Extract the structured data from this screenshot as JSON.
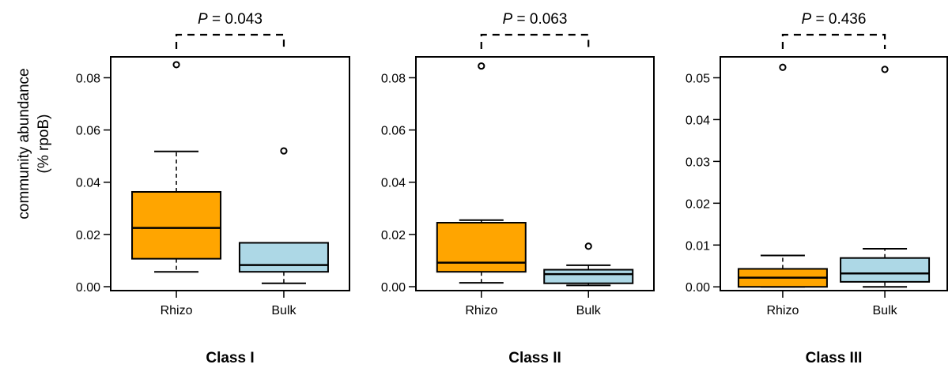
{
  "y_axis_label_lines": [
    "community abundance",
    "(% rpoB)"
  ],
  "colors": {
    "Rhizo": "#ffa500",
    "Bulk": "#add8e6"
  },
  "chart_data": [
    {
      "type": "box",
      "title": "Class I",
      "categories": [
        "Rhizo",
        "Bulk"
      ],
      "ylim": [
        -0.0015,
        0.088
      ],
      "yticks": [
        0,
        0.02,
        0.04,
        0.06,
        0.08
      ],
      "ytick_labels": [
        "0.00",
        "0.02",
        "0.04",
        "0.06",
        "0.08"
      ],
      "p_label": "P",
      "p_value": "= 0.043",
      "boxes": [
        {
          "group": "Rhizo",
          "min": 0.0057,
          "q1": 0.0107,
          "median": 0.0225,
          "q3": 0.0363,
          "max": 0.0518,
          "outliers": [
            0.085
          ]
        },
        {
          "group": "Bulk",
          "min": 0.0013,
          "q1": 0.0057,
          "median": 0.0083,
          "q3": 0.0168,
          "max": 0.0168,
          "outliers": [
            0.052
          ]
        }
      ]
    },
    {
      "type": "box",
      "title": "Class II",
      "categories": [
        "Rhizo",
        "Bulk"
      ],
      "ylim": [
        -0.0015,
        0.088
      ],
      "yticks": [
        0,
        0.02,
        0.04,
        0.06,
        0.08
      ],
      "ytick_labels": [
        "0.00",
        "0.02",
        "0.04",
        "0.06",
        "0.08"
      ],
      "p_label": "P",
      "p_value": "= 0.063",
      "boxes": [
        {
          "group": "Rhizo",
          "min": 0.0015,
          "q1": 0.0057,
          "median": 0.0092,
          "q3": 0.0245,
          "max": 0.0255,
          "outliers": [
            0.0845
          ]
        },
        {
          "group": "Bulk",
          "min": 0.0005,
          "q1": 0.0013,
          "median": 0.0048,
          "q3": 0.0065,
          "max": 0.0082,
          "outliers": [
            0.0155
          ]
        }
      ]
    },
    {
      "type": "box",
      "title": "Class III",
      "categories": [
        "Rhizo",
        "Bulk"
      ],
      "ylim": [
        -0.0009,
        0.055
      ],
      "yticks": [
        0,
        0.01,
        0.02,
        0.03,
        0.04,
        0.05
      ],
      "ytick_labels": [
        "0.00",
        "0.01",
        "0.02",
        "0.03",
        "0.04",
        "0.05"
      ],
      "p_label": "P",
      "p_value": "= 0.436",
      "boxes": [
        {
          "group": "Rhizo",
          "min": 0.0,
          "q1": 0.0,
          "median": 0.0022,
          "q3": 0.0043,
          "max": 0.0075,
          "outliers": [
            0.0525
          ]
        },
        {
          "group": "Bulk",
          "min": 0.0,
          "q1": 0.0012,
          "median": 0.0032,
          "q3": 0.0069,
          "max": 0.0091,
          "outliers": [
            0.052
          ]
        }
      ]
    }
  ]
}
